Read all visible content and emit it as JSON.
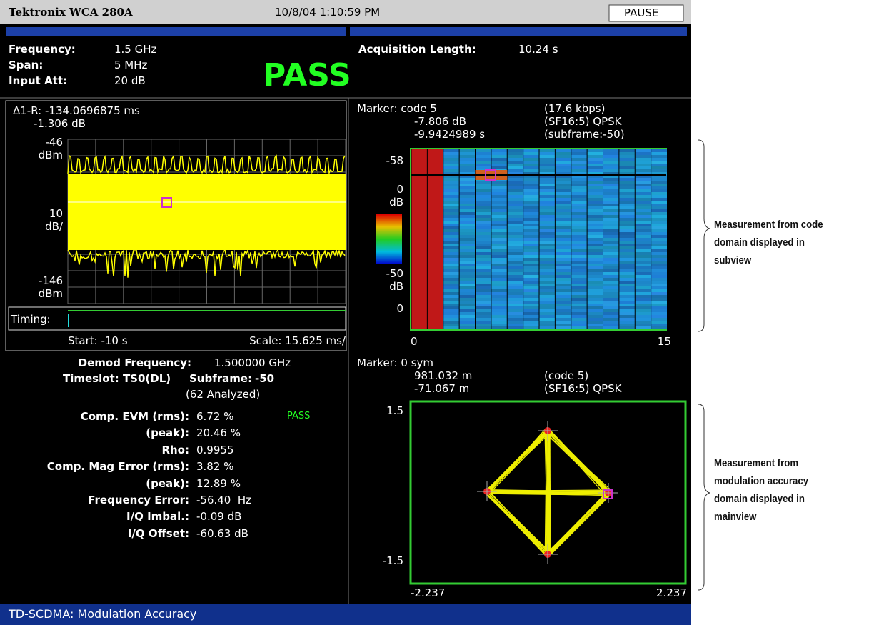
{
  "header": {
    "brand": "Tektronix WCA 280A",
    "datetime": "10/8/04 1:10:59 PM",
    "button": "PAUSE"
  },
  "settings": {
    "rows": [
      [
        "Frequency:",
        "1.5 GHz"
      ],
      [
        "Span:",
        "5 MHz"
      ],
      [
        "Input Att:",
        "20 dB"
      ]
    ],
    "status": "PASS",
    "acquisition_label": "Acquisition Length:",
    "acquisition_value": "10.24 s"
  },
  "time_view": {
    "marker": [
      "Δ1-R: -134.0696875 ms",
      "-1.306 dB"
    ],
    "y_labels": [
      "-46",
      "dBm",
      "10",
      "dB/",
      "-146",
      "dBm"
    ],
    "timing": "Timing:",
    "start": "Start: -10 s",
    "scale": "Scale: 15.625 ms/"
  },
  "results": {
    "demod_label": "Demod Frequency:",
    "demod_value": "1.500000 GHz",
    "timeslot": "Timeslot: TS0(DL)",
    "subframe_label": "Subframe:",
    "subframe_value": "-50",
    "analyzed": "(62 Analyzed)",
    "rows": [
      {
        "label": "Comp. EVM (rms):",
        "value": "6.72 %"
      },
      {
        "label": "(peak):",
        "value": "20.46 %"
      },
      {
        "label": "Rho:",
        "value": "0.9955"
      },
      {
        "label": "Comp. Mag Error (rms):",
        "value": "3.82 %"
      },
      {
        "label": "(peak):",
        "value": "12.89 %"
      },
      {
        "label": "Frequency Error:",
        "value": "-56.40  Hz"
      },
      {
        "label": "I/Q Imbal.:",
        "value": "-0.09 dB"
      },
      {
        "label": "I/Q Offset:",
        "value": "-60.63 dB"
      }
    ],
    "evm_status": "PASS"
  },
  "code_view": {
    "marker": [
      "Marker: code 5",
      "-7.806 dB",
      "-9.9424989 s"
    ],
    "info": [
      "(17.6 kbps)",
      "(SF16:5) QPSK",
      "(subframe:-50)"
    ],
    "y_labels": [
      "-58",
      "0",
      "dB",
      "-50",
      "dB",
      "0"
    ],
    "x_labels": [
      "0",
      "15"
    ]
  },
  "constellation": {
    "marker": [
      "Marker: 0 sym",
      "981.032 m",
      "-71.067 m"
    ],
    "info": [
      "(code 5)",
      "(SF16:5) QPSK"
    ],
    "y_labels": [
      "1.5",
      "-1.5"
    ],
    "x_labels": [
      "-2.237",
      "2.237"
    ]
  },
  "annotations": [
    [
      "Measurement from code",
      "domain displayed in",
      "subview"
    ],
    [
      "Measurement from",
      "modulation accuracy",
      "domain displayed in",
      "mainview"
    ]
  ],
  "footer": "TD-SCDMA: Modulation Accuracy"
}
